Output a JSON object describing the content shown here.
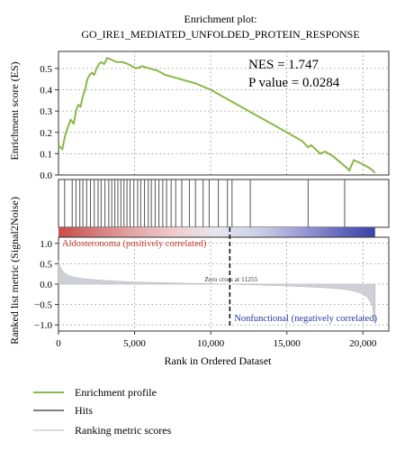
{
  "chart_data": {
    "type": "line",
    "title": "Enrichment plot:",
    "subtitle": "GO_IRE1_MEDIATED_UNFOLDED_PROTEIN_RESPONSE",
    "annotations": {
      "nes": "NES = 1.747",
      "pvalue": "P value = 0.0284",
      "pos_label": "Aldosteronoma (positively correlated)",
      "neg_label": "Nonfunctional (negatively correlated)",
      "zero_cross": "Zero cross at 11255"
    },
    "zero_cross_rank": 11255,
    "es_panel": {
      "ylabel": "Enrichment score (ES)",
      "ylim": [
        0,
        0.58
      ],
      "yticks": [
        0.0,
        0.1,
        0.2,
        0.3,
        0.4,
        0.5
      ],
      "ytick_labels": [
        "0.0",
        "0.1",
        "0.2",
        "0.3",
        "0.4",
        "0.5"
      ],
      "color": "#8bb84a",
      "series": [
        {
          "name": "Enrichment profile",
          "x": [
            0,
            250,
            450,
            600,
            800,
            1000,
            1150,
            1300,
            1450,
            1600,
            1750,
            1900,
            2050,
            2200,
            2350,
            2500,
            2650,
            2800,
            3000,
            3200,
            3500,
            3800,
            4200,
            4600,
            5100,
            5500,
            6000,
            6500,
            7000,
            7500,
            8000,
            9000,
            10000,
            11000,
            12000,
            13000,
            14000,
            15000,
            16000,
            16400,
            16600,
            16900,
            17200,
            17500,
            18000,
            18500,
            19000,
            19100,
            19400,
            20000,
            20500,
            20800
          ],
          "y": [
            0.14,
            0.12,
            0.19,
            0.22,
            0.26,
            0.24,
            0.3,
            0.33,
            0.32,
            0.37,
            0.4,
            0.45,
            0.47,
            0.48,
            0.47,
            0.5,
            0.52,
            0.53,
            0.52,
            0.55,
            0.54,
            0.53,
            0.53,
            0.52,
            0.5,
            0.51,
            0.5,
            0.49,
            0.47,
            0.46,
            0.45,
            0.43,
            0.4,
            0.36,
            0.32,
            0.28,
            0.24,
            0.2,
            0.16,
            0.13,
            0.14,
            0.12,
            0.1,
            0.11,
            0.09,
            0.06,
            0.03,
            0.02,
            0.07,
            0.05,
            0.03,
            0.01
          ]
        }
      ]
    },
    "hits_panel": {
      "color": "#555555",
      "positions": [
        400,
        900,
        1150,
        1400,
        1600,
        1850,
        2100,
        2350,
        2600,
        2800,
        3050,
        3300,
        3500,
        3700,
        3900,
        4100,
        4300,
        4500,
        4700,
        4950,
        5200,
        5400,
        5650,
        5900,
        6100,
        6350,
        6600,
        6850,
        7100,
        7400,
        7700,
        8100,
        8600,
        9000,
        9500,
        9900,
        10500,
        11100,
        11400,
        12600,
        16400,
        18800
      ]
    },
    "heatmap": {
      "stops": [
        {
          "rank": 0,
          "color": "#c94a4a"
        },
        {
          "rank": 2500,
          "color": "#d77b7b"
        },
        {
          "rank": 5000,
          "color": "#e3a7a7"
        },
        {
          "rank": 8000,
          "color": "#eed1d1"
        },
        {
          "rank": 10500,
          "color": "#e6e6f0"
        },
        {
          "rank": 13500,
          "color": "#c9c9e6"
        },
        {
          "rank": 16500,
          "color": "#8f92cf"
        },
        {
          "rank": 19000,
          "color": "#5a5fb8"
        },
        {
          "rank": 20800,
          "color": "#3c44a6"
        }
      ]
    },
    "metric_panel": {
      "ylabel": "Ranked list metric (Signal2Noise)",
      "ylim": [
        -1.15,
        1.15
      ],
      "yticks": [
        -1.0,
        -0.5,
        0.0,
        0.5,
        1.0
      ],
      "ytick_labels": [
        "−1.0",
        "−0.5",
        "0.0",
        "0.5",
        "1.0"
      ],
      "color": "#cfcfd6",
      "series": [
        {
          "name": "Ranking metric scores",
          "x": [
            0,
            100,
            300,
            600,
            1000,
            1500,
            2000,
            3000,
            4000,
            5000,
            6000,
            7000,
            8000,
            9000,
            10000,
            11255,
            12000,
            13000,
            14000,
            15000,
            16000,
            17000,
            18000,
            19000,
            19500,
            20000,
            20300,
            20600,
            20800
          ],
          "y": [
            0.58,
            0.42,
            0.3,
            0.22,
            0.17,
            0.14,
            0.12,
            0.09,
            0.07,
            0.055,
            0.045,
            0.035,
            0.025,
            0.015,
            0.008,
            0.0,
            -0.008,
            -0.018,
            -0.03,
            -0.045,
            -0.06,
            -0.08,
            -0.1,
            -0.14,
            -0.18,
            -0.24,
            -0.32,
            -0.5,
            -0.98
          ]
        }
      ]
    },
    "x_axis": {
      "xlabel": "Rank in Ordered Dataset",
      "xlim": [
        0,
        21700
      ],
      "xticks": [
        0,
        5000,
        10000,
        15000,
        20000
      ],
      "xtick_labels": [
        "0",
        "5,000",
        "10,000",
        "15,000",
        "20,000"
      ]
    },
    "grid": true,
    "legend": {
      "position": "bottom-left",
      "items": [
        {
          "label": "Enrichment profile",
          "color": "#8bb84a"
        },
        {
          "label": "Hits",
          "color": "#555555"
        },
        {
          "label": "Ranking metric scores",
          "color": "#cfcfd6"
        }
      ]
    }
  }
}
